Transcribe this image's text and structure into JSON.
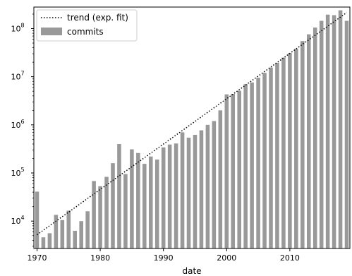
{
  "chart_data": {
    "type": "bar",
    "title": "",
    "xlabel": "date",
    "ylabel": "",
    "x_range": [
      1970,
      2019
    ],
    "y_scale": "log",
    "ylim": [
      2700,
      280000000
    ],
    "grid": false,
    "legend_position": "top-left",
    "x_ticks": [
      1970,
      1980,
      1990,
      2000,
      2010
    ],
    "y_ticks": [
      {
        "value": 10000,
        "base": "10",
        "exp": "4"
      },
      {
        "value": 100000,
        "base": "10",
        "exp": "5"
      },
      {
        "value": 1000000,
        "base": "10",
        "exp": "6"
      },
      {
        "value": 10000000,
        "base": "10",
        "exp": "7"
      },
      {
        "value": 100000000,
        "base": "10",
        "exp": "8"
      }
    ],
    "series": [
      {
        "name": "commits",
        "kind": "bar",
        "color": "#999999",
        "x": [
          1970,
          1971,
          1972,
          1973,
          1974,
          1975,
          1976,
          1977,
          1978,
          1979,
          1980,
          1981,
          1982,
          1983,
          1984,
          1985,
          1986,
          1987,
          1988,
          1989,
          1990,
          1991,
          1992,
          1993,
          1994,
          1995,
          1996,
          1997,
          1998,
          1999,
          2000,
          2001,
          2002,
          2003,
          2004,
          2005,
          2006,
          2007,
          2008,
          2009,
          2010,
          2011,
          2012,
          2013,
          2014,
          2015,
          2016,
          2017,
          2018,
          2019
        ],
        "values": [
          41000,
          4600,
          5600,
          13500,
          10500,
          16500,
          6300,
          10000,
          16000,
          68000,
          53000,
          83000,
          160000,
          400000,
          95000,
          310000,
          260000,
          155000,
          220000,
          190000,
          340000,
          390000,
          410000,
          700000,
          540000,
          620000,
          770000,
          1000000,
          1200000,
          2000000,
          4300000,
          4400000,
          5100000,
          7000000,
          7600000,
          9500000,
          12000000,
          15500000,
          19500000,
          25000000,
          31000000,
          38000000,
          55000000,
          76000000,
          105000000,
          145000000,
          195000000,
          190000000,
          240000000,
          145000000
        ]
      },
      {
        "name": "trend (exp. fit)",
        "kind": "line",
        "style": "dotted",
        "color": "#000000",
        "x": [
          1970,
          2019
        ],
        "values": [
          5200,
          215000000
        ]
      }
    ]
  }
}
